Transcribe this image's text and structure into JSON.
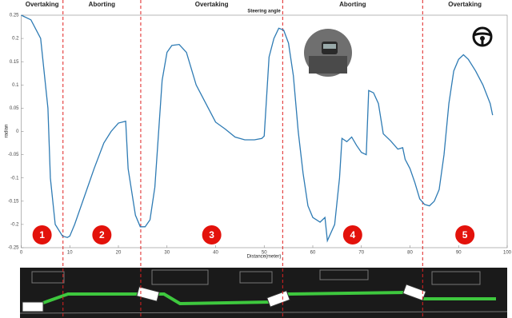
{
  "chart_data": {
    "type": "line",
    "title": "Steering angle",
    "xlabel": "Distance(meter)",
    "ylabel": "radian",
    "x": [
      0,
      2,
      4,
      5.5,
      6,
      7,
      8.5,
      9.5,
      10,
      11,
      13,
      15,
      17,
      18.5,
      20,
      21.5,
      22,
      23.5,
      24.5,
      25.5,
      26.5,
      27.5,
      29,
      30,
      31,
      32.5,
      34,
      36,
      38,
      40,
      42,
      44,
      46,
      48,
      49.5,
      50,
      51,
      52,
      53,
      54,
      55,
      56,
      57,
      58,
      59,
      60,
      61.5,
      62.5,
      63,
      64.5,
      65.5,
      66,
      67,
      68,
      69,
      70,
      71,
      71.5,
      72.5,
      73.5,
      74.5,
      76,
      77.5,
      78.5,
      79,
      80,
      81,
      82,
      83,
      84,
      85,
      86,
      87,
      88,
      89,
      90,
      91,
      92,
      93.5,
      95,
      96.5,
      97
    ],
    "values": [
      0.25,
      0.24,
      0.2,
      0.05,
      -0.1,
      -0.2,
      -0.225,
      -0.228,
      -0.225,
      -0.2,
      -0.14,
      -0.08,
      -0.025,
      0,
      0.018,
      0.022,
      -0.08,
      -0.18,
      -0.205,
      -0.205,
      -0.19,
      -0.12,
      0.11,
      0.17,
      0.185,
      0.187,
      0.17,
      0.1,
      0.06,
      0.02,
      0.005,
      -0.012,
      -0.018,
      -0.018,
      -0.015,
      -0.01,
      0.16,
      0.2,
      0.222,
      0.218,
      0.19,
      0.12,
      0,
      -0.09,
      -0.16,
      -0.185,
      -0.195,
      -0.185,
      -0.235,
      -0.2,
      -0.1,
      -0.015,
      -0.022,
      -0.012,
      -0.03,
      -0.045,
      -0.05,
      0.088,
      0.083,
      0.06,
      -0.005,
      -0.02,
      -0.038,
      -0.035,
      -0.06,
      -0.08,
      -0.11,
      -0.145,
      -0.157,
      -0.16,
      -0.15,
      -0.125,
      -0.05,
      0.06,
      0.13,
      0.155,
      0.165,
      0.155,
      0.13,
      0.1,
      0.06,
      0.035
    ],
    "color": "#2e7bb4",
    "xlim": [
      0,
      100
    ],
    "ylim": [
      -0.25,
      0.25
    ],
    "xticks": [
      0,
      10,
      20,
      30,
      40,
      50,
      60,
      70,
      80,
      90,
      100
    ],
    "yticks": [
      -0.25,
      -0.2,
      -0.15,
      -0.1,
      -0.05,
      0,
      0.05,
      0.1,
      0.15,
      0.2,
      0.25
    ],
    "phase_boundaries": [
      8.6,
      24.6,
      53.8,
      82.6
    ],
    "boundary_color": "#e02020",
    "phases": [
      "Overtaking",
      "Aborting",
      "Overtaking",
      "Aborting",
      "Overtaking"
    ],
    "markers": [
      1,
      2,
      3,
      4,
      5
    ],
    "marker_color": "#e3120b"
  }
}
